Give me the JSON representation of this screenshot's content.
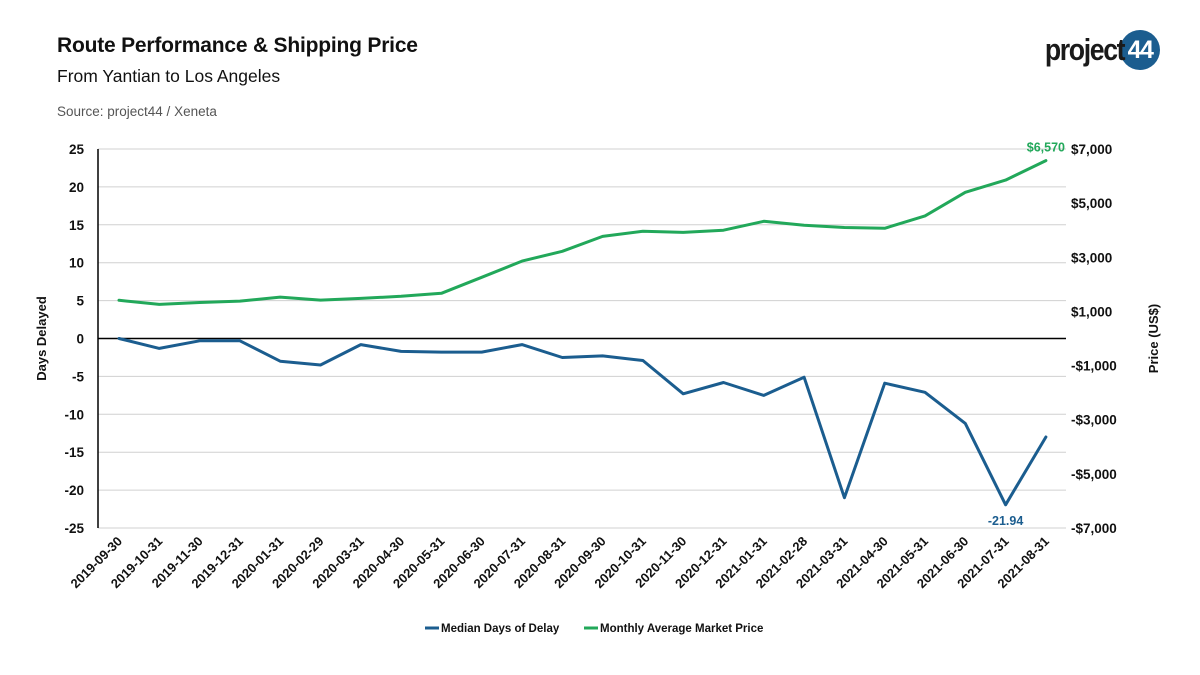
{
  "header": {
    "title": "Route Performance & Shipping Price",
    "subtitle": "From Yantian to Los Angeles",
    "source": "Source: project44 / Xeneta"
  },
  "logo": {
    "text": "project",
    "badge": "44"
  },
  "colors": {
    "delay": "#1b5d8f",
    "price": "#22a85a",
    "axis": "#000000",
    "grid": "#d0d0d0"
  },
  "chart_data": {
    "type": "line",
    "categories": [
      "2019-09-30",
      "2019-10-31",
      "2019-11-30",
      "2019-12-31",
      "2020-01-31",
      "2020-02-29",
      "2020-03-31",
      "2020-04-30",
      "2020-05-31",
      "2020-06-30",
      "2020-07-31",
      "2020-08-31",
      "2020-09-30",
      "2020-10-31",
      "2020-11-30",
      "2020-12-31",
      "2021-01-31",
      "2021-02-28",
      "2021-03-31",
      "2021-04-30",
      "2021-05-31",
      "2021-06-30",
      "2021-07-31",
      "2021-08-31"
    ],
    "series": [
      {
        "name": "Median Days of Delay",
        "axis": "left",
        "values": [
          0,
          -1.3,
          -0.3,
          -0.3,
          -3.0,
          -3.5,
          -0.8,
          -1.7,
          -1.8,
          -1.8,
          -0.8,
          -2.5,
          -2.3,
          -2.9,
          -7.3,
          -5.8,
          -7.5,
          -5.1,
          -21.0,
          -5.9,
          -7.1,
          -11.2,
          -21.94,
          -13.0
        ]
      },
      {
        "name": "Monthly Average Market Price",
        "axis": "right",
        "values": [
          1410,
          1260,
          1330,
          1380,
          1530,
          1420,
          1480,
          1560,
          1670,
          2260,
          2860,
          3220,
          3770,
          3960,
          3920,
          4000,
          4330,
          4180,
          4100,
          4070,
          4530,
          5400,
          5850,
          6570
        ]
      }
    ],
    "ylabel_left": "Days Delayed",
    "ylabel_right": "Price (US$)",
    "ylim_left": [
      -25,
      25
    ],
    "yticks_left": [
      "25",
      "20",
      "15",
      "10",
      "5",
      "0",
      "-5",
      "-10",
      "-15",
      "-20",
      "-25"
    ],
    "ylim_right": [
      -7000,
      7000
    ],
    "yticks_right": [
      "$7,000",
      "$5,000",
      "$3,000",
      "$1,000",
      "-$1,000",
      "-$3,000",
      "-$5,000",
      "-$7,000"
    ],
    "annotations": [
      {
        "series": 1,
        "index": 23,
        "text": "$6,570"
      },
      {
        "series": 0,
        "index": 22,
        "text": "-21.94"
      }
    ],
    "grid": true,
    "legend_position": "bottom"
  }
}
